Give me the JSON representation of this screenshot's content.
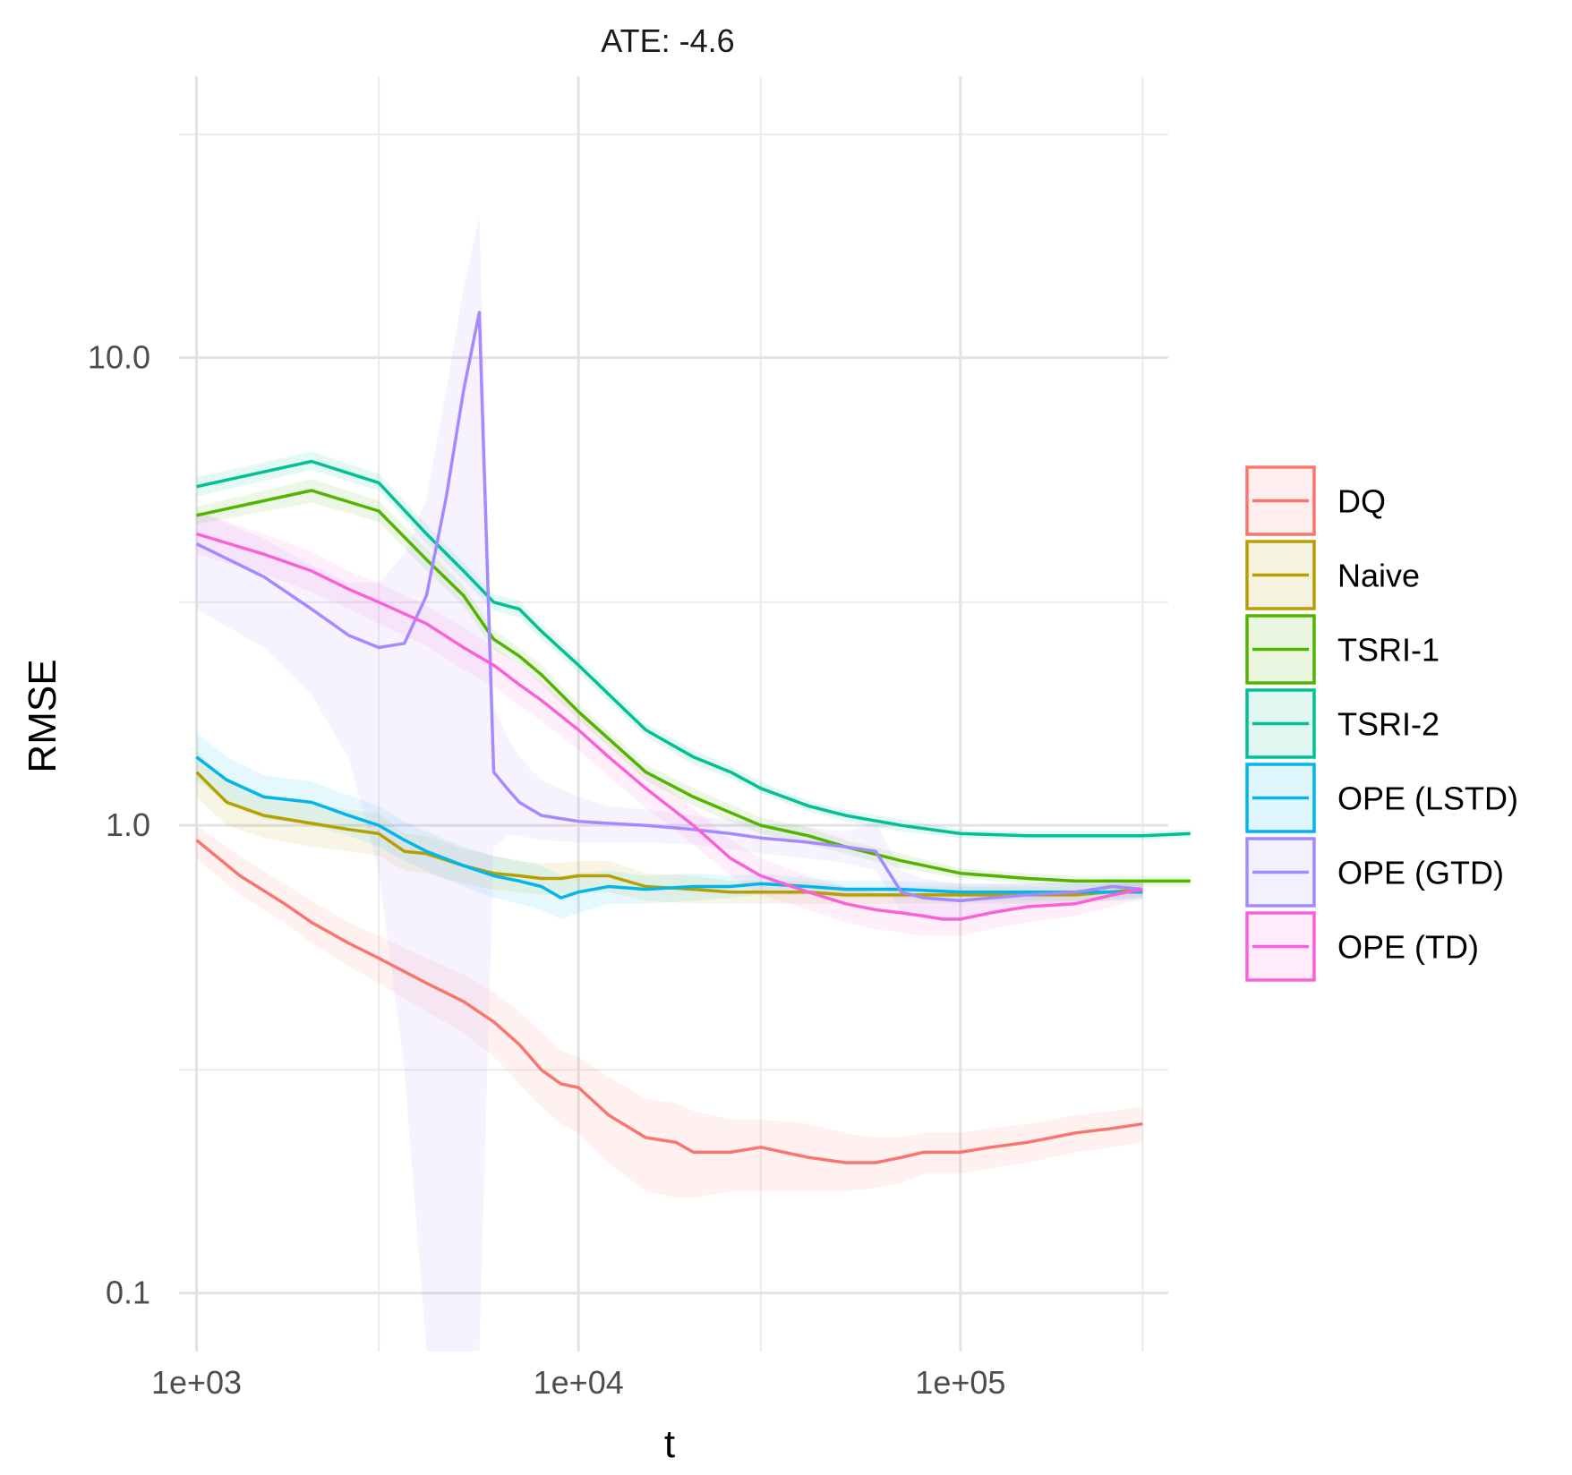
{
  "chart_data": {
    "type": "line",
    "title": "ATE: -4.6",
    "xlabel": "t",
    "ylabel": "RMSE",
    "xscale": "log10",
    "yscale": "log10",
    "xlim": [
      900,
      350000
    ],
    "ylim": [
      0.075,
      40
    ],
    "x_ticks": [
      {
        "value": 1000,
        "label": "1e+03"
      },
      {
        "value": 10000,
        "label": "1e+04"
      },
      {
        "value": 100000,
        "label": "1e+05"
      }
    ],
    "y_ticks": [
      {
        "value": 0.1,
        "label": "0.1"
      },
      {
        "value": 1.0,
        "label": "1.0"
      },
      {
        "value": 10.0,
        "label": "10.0"
      }
    ],
    "grid": true,
    "legend_position": "right",
    "series": [
      {
        "name": "DQ",
        "color": "#F8766D",
        "x": [
          1000,
          1300,
          1700,
          2000,
          2500,
          3000,
          4000,
          5000,
          6000,
          7000,
          8000,
          9000,
          10000,
          12000,
          15000,
          18000,
          20000,
          25000,
          30000,
          40000,
          50000,
          60000,
          70000,
          80000,
          100000,
          120000,
          150000,
          200000,
          250000,
          300000
        ],
        "y": [
          0.93,
          0.78,
          0.68,
          0.62,
          0.56,
          0.52,
          0.46,
          0.42,
          0.38,
          0.34,
          0.3,
          0.28,
          0.275,
          0.24,
          0.215,
          0.21,
          0.2,
          0.2,
          0.205,
          0.195,
          0.19,
          0.19,
          0.195,
          0.2,
          0.2,
          0.205,
          0.21,
          0.22,
          0.225,
          0.23
        ],
        "lower": [
          0.85,
          0.71,
          0.62,
          0.56,
          0.5,
          0.46,
          0.4,
          0.36,
          0.32,
          0.28,
          0.25,
          0.23,
          0.22,
          0.19,
          0.165,
          0.16,
          0.16,
          0.165,
          0.165,
          0.165,
          0.165,
          0.168,
          0.172,
          0.18,
          0.18,
          0.185,
          0.19,
          0.2,
          0.205,
          0.21
        ],
        "upper": [
          1.0,
          0.86,
          0.75,
          0.69,
          0.62,
          0.58,
          0.52,
          0.48,
          0.44,
          0.4,
          0.36,
          0.33,
          0.32,
          0.29,
          0.26,
          0.255,
          0.245,
          0.235,
          0.235,
          0.23,
          0.22,
          0.215,
          0.215,
          0.22,
          0.22,
          0.225,
          0.23,
          0.24,
          0.245,
          0.25
        ]
      },
      {
        "name": "Naive",
        "color": "#B79F00",
        "x": [
          1000,
          1200,
          1500,
          2000,
          2500,
          3000,
          3500,
          4000,
          5000,
          6000,
          7000,
          8000,
          9000,
          10000,
          12000,
          15000,
          20000,
          25000,
          30000,
          40000,
          50000,
          70000,
          100000,
          150000,
          200000,
          300000
        ],
        "y": [
          1.3,
          1.12,
          1.05,
          1.01,
          0.98,
          0.96,
          0.88,
          0.87,
          0.82,
          0.79,
          0.78,
          0.77,
          0.77,
          0.78,
          0.78,
          0.74,
          0.73,
          0.72,
          0.72,
          0.72,
          0.71,
          0.71,
          0.71,
          0.71,
          0.71,
          0.73
        ],
        "lower": [
          1.15,
          1.0,
          0.94,
          0.9,
          0.88,
          0.86,
          0.8,
          0.79,
          0.75,
          0.73,
          0.72,
          0.71,
          0.71,
          0.72,
          0.72,
          0.69,
          0.68,
          0.68,
          0.68,
          0.68,
          0.68,
          0.68,
          0.68,
          0.68,
          0.68,
          0.7
        ],
        "upper": [
          1.45,
          1.24,
          1.16,
          1.12,
          1.08,
          1.06,
          0.96,
          0.95,
          0.89,
          0.86,
          0.84,
          0.83,
          0.83,
          0.84,
          0.84,
          0.79,
          0.78,
          0.76,
          0.76,
          0.76,
          0.74,
          0.74,
          0.74,
          0.74,
          0.74,
          0.76
        ]
      },
      {
        "name": "TSRI-1",
        "color": "#53B400",
        "x": [
          1000,
          2000,
          3000,
          4000,
          5000,
          6000,
          7000,
          8000,
          10000,
          15000,
          20000,
          30000,
          40000,
          50000,
          70000,
          100000,
          150000,
          200000,
          300000,
          400000
        ],
        "y": [
          4.6,
          5.2,
          4.7,
          3.7,
          3.1,
          2.5,
          2.3,
          2.1,
          1.75,
          1.3,
          1.15,
          1.0,
          0.95,
          0.9,
          0.84,
          0.79,
          0.77,
          0.76,
          0.76,
          0.76
        ],
        "lower": [
          4.4,
          4.9,
          4.45,
          3.5,
          2.95,
          2.38,
          2.2,
          2.0,
          1.68,
          1.25,
          1.1,
          0.96,
          0.91,
          0.87,
          0.81,
          0.77,
          0.75,
          0.74,
          0.74,
          0.74
        ],
        "upper": [
          4.8,
          5.5,
          4.95,
          3.9,
          3.25,
          2.62,
          2.4,
          2.2,
          1.82,
          1.35,
          1.2,
          1.04,
          0.99,
          0.93,
          0.87,
          0.81,
          0.79,
          0.78,
          0.78,
          0.78
        ]
      },
      {
        "name": "TSRI-2",
        "color": "#00C094",
        "x": [
          1000,
          2000,
          3000,
          4000,
          5000,
          6000,
          7000,
          8000,
          10000,
          15000,
          20000,
          25000,
          30000,
          40000,
          50000,
          70000,
          100000,
          150000,
          200000,
          300000,
          400000
        ],
        "y": [
          5.3,
          6.0,
          5.4,
          4.2,
          3.5,
          3.0,
          2.9,
          2.6,
          2.2,
          1.6,
          1.4,
          1.3,
          1.2,
          1.1,
          1.05,
          1.0,
          0.96,
          0.95,
          0.95,
          0.95,
          0.96
        ],
        "lower": [
          5.05,
          5.75,
          5.2,
          4.0,
          3.35,
          2.88,
          2.78,
          2.5,
          2.12,
          1.55,
          1.35,
          1.26,
          1.17,
          1.07,
          1.02,
          0.97,
          0.94,
          0.93,
          0.93,
          0.93,
          0.94
        ],
        "upper": [
          5.55,
          6.3,
          5.65,
          4.4,
          3.65,
          3.12,
          3.02,
          2.7,
          2.28,
          1.65,
          1.45,
          1.34,
          1.24,
          1.13,
          1.08,
          1.03,
          0.98,
          0.97,
          0.97,
          0.97,
          0.98
        ]
      },
      {
        "name": "OPE (LSTD)",
        "color": "#00B6EB",
        "x": [
          1000,
          1200,
          1500,
          2000,
          2500,
          3000,
          3500,
          4000,
          5000,
          6000,
          7000,
          8000,
          9000,
          10000,
          12000,
          15000,
          20000,
          25000,
          30000,
          40000,
          50000,
          70000,
          100000,
          150000,
          200000,
          300000
        ],
        "y": [
          1.4,
          1.25,
          1.15,
          1.12,
          1.05,
          1.0,
          0.93,
          0.88,
          0.82,
          0.78,
          0.76,
          0.74,
          0.7,
          0.72,
          0.74,
          0.73,
          0.74,
          0.74,
          0.75,
          0.74,
          0.73,
          0.73,
          0.72,
          0.72,
          0.72,
          0.72
        ],
        "lower": [
          1.25,
          1.12,
          1.03,
          1.0,
          0.95,
          0.9,
          0.84,
          0.8,
          0.74,
          0.7,
          0.68,
          0.66,
          0.63,
          0.65,
          0.68,
          0.68,
          0.69,
          0.7,
          0.71,
          0.71,
          0.7,
          0.7,
          0.69,
          0.69,
          0.69,
          0.69
        ],
        "upper": [
          1.58,
          1.4,
          1.28,
          1.24,
          1.16,
          1.1,
          1.02,
          0.97,
          0.9,
          0.86,
          0.84,
          0.82,
          0.78,
          0.79,
          0.8,
          0.78,
          0.79,
          0.78,
          0.79,
          0.77,
          0.76,
          0.76,
          0.75,
          0.75,
          0.75,
          0.75
        ]
      },
      {
        "name": "OPE (GTD)",
        "color": "#A58AFF",
        "x": [
          1000,
          1500,
          2000,
          2500,
          3000,
          3500,
          4000,
          4500,
          5000,
          5500,
          6000,
          6500,
          7000,
          8000,
          10000,
          12000,
          15000,
          20000,
          25000,
          30000,
          40000,
          50000,
          60000,
          70000,
          80000,
          100000,
          120000,
          150000,
          200000,
          250000,
          300000
        ],
        "y": [
          4.0,
          3.4,
          2.9,
          2.55,
          2.4,
          2.45,
          3.1,
          5.0,
          8.5,
          12.5,
          1.3,
          1.2,
          1.12,
          1.05,
          1.02,
          1.01,
          1.0,
          0.98,
          0.96,
          0.94,
          0.92,
          0.9,
          0.88,
          0.72,
          0.7,
          0.69,
          0.7,
          0.71,
          0.72,
          0.74,
          0.73
        ],
        "lower": [
          2.9,
          2.4,
          1.9,
          1.4,
          0.8,
          0.3,
          0.05,
          0.05,
          0.05,
          0.05,
          0.9,
          0.95,
          0.95,
          0.93,
          0.92,
          0.92,
          0.92,
          0.91,
          0.89,
          0.87,
          0.85,
          0.83,
          0.8,
          0.65,
          0.63,
          0.63,
          0.65,
          0.67,
          0.68,
          0.7,
          0.7
        ],
        "upper": [
          4.7,
          4.1,
          3.6,
          3.3,
          3.3,
          3.8,
          5.0,
          8.5,
          14.0,
          20.0,
          1.8,
          1.55,
          1.4,
          1.25,
          1.15,
          1.1,
          1.08,
          1.05,
          1.03,
          1.01,
          0.99,
          0.97,
          1.02,
          0.8,
          0.77,
          0.75,
          0.75,
          0.75,
          0.76,
          0.77,
          0.76
        ]
      },
      {
        "name": "OPE (TD)",
        "color": "#FB61D7",
        "x": [
          1000,
          1500,
          2000,
          2500,
          3000,
          4000,
          5000,
          6000,
          7000,
          8000,
          10000,
          12000,
          15000,
          20000,
          25000,
          30000,
          40000,
          50000,
          60000,
          70000,
          80000,
          90000,
          100000,
          120000,
          150000,
          200000,
          250000,
          300000
        ],
        "y": [
          4.2,
          3.8,
          3.5,
          3.2,
          3.0,
          2.7,
          2.4,
          2.2,
          2.0,
          1.85,
          1.6,
          1.4,
          1.2,
          1.0,
          0.85,
          0.78,
          0.72,
          0.68,
          0.66,
          0.65,
          0.64,
          0.63,
          0.63,
          0.65,
          0.67,
          0.68,
          0.71,
          0.73
        ],
        "lower": [
          3.8,
          3.45,
          3.15,
          2.9,
          2.7,
          2.42,
          2.15,
          1.98,
          1.8,
          1.67,
          1.45,
          1.27,
          1.09,
          0.91,
          0.78,
          0.71,
          0.66,
          0.62,
          0.6,
          0.59,
          0.58,
          0.58,
          0.58,
          0.6,
          0.62,
          0.64,
          0.67,
          0.7
        ],
        "upper": [
          4.7,
          4.2,
          3.85,
          3.5,
          3.3,
          2.95,
          2.65,
          2.42,
          2.2,
          2.03,
          1.75,
          1.53,
          1.31,
          1.09,
          0.93,
          0.85,
          0.78,
          0.74,
          0.72,
          0.71,
          0.7,
          0.69,
          0.68,
          0.7,
          0.72,
          0.72,
          0.75,
          0.76
        ]
      }
    ]
  }
}
